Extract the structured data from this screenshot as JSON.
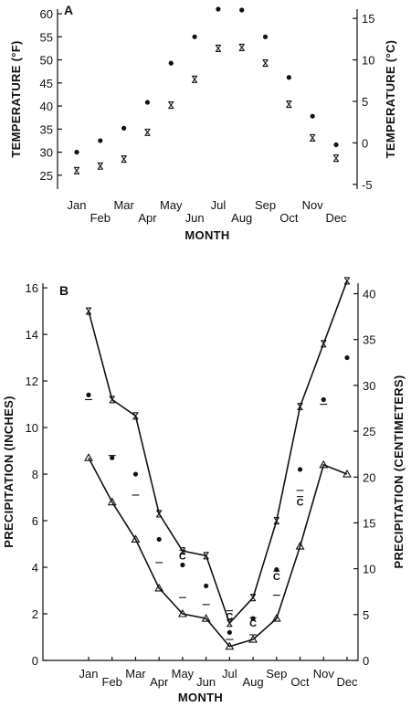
{
  "chart_data": [
    {
      "panel": "A",
      "type": "scatter",
      "xlabel": "MONTH",
      "ylabel": "TEMPERATURE (°F)",
      "ylabel_right": "TEMPERATURE (°C)",
      "categories": [
        "Jan",
        "Feb",
        "Mar",
        "Apr",
        "May",
        "Jun",
        "Jul",
        "Aug",
        "Sep",
        "Oct",
        "Nov",
        "Dec"
      ],
      "ylim": [
        22,
        61
      ],
      "yticks": [
        25,
        30,
        35,
        40,
        45,
        50,
        55,
        60
      ],
      "ylim_right": [
        -5.56,
        16.11
      ],
      "yticks_right": [
        -5,
        0,
        5,
        10,
        15
      ],
      "series": [
        {
          "marker": "dot",
          "values": [
            30,
            32.5,
            35.2,
            40.8,
            49.3,
            55,
            61,
            60.8,
            55,
            46.2,
            37.8,
            31.6
          ]
        },
        {
          "marker": "x",
          "values": [
            26,
            27,
            28.5,
            34.3,
            40.2,
            45.8,
            52.5,
            52.7,
            49.3,
            40.4,
            33.1,
            28.7
          ]
        }
      ]
    },
    {
      "panel": "B",
      "type": "line",
      "xlabel": "MONTH",
      "ylabel": "PRECIPITATION (INCHES)",
      "ylabel_right": "PRECIPITATION (CENTIMETERS)",
      "categories": [
        "Jan",
        "Feb",
        "Mar",
        "Apr",
        "May",
        "Jun",
        "Jul",
        "Aug",
        "Sep",
        "Oct",
        "Nov",
        "Dec"
      ],
      "ylim": [
        0,
        16.2
      ],
      "yticks": [
        0,
        2,
        4,
        6,
        8,
        10,
        12,
        14,
        16
      ],
      "ylim_right": [
        0,
        41.15
      ],
      "yticks_right": [
        0,
        5,
        10,
        15,
        20,
        25,
        30,
        35,
        40
      ],
      "series": [
        {
          "marker": "x",
          "line": true,
          "values": [
            15.0,
            11.2,
            10.5,
            6.3,
            4.7,
            4.5,
            1.6,
            2.7,
            6.0,
            10.9,
            13.6,
            16.3
          ]
        },
        {
          "marker": "triangle",
          "line": true,
          "values": [
            8.7,
            6.8,
            5.2,
            3.1,
            2.0,
            1.8,
            0.6,
            0.9,
            1.8,
            4.9,
            8.4,
            8.0
          ]
        },
        {
          "marker": "dot",
          "values": [
            11.4,
            8.7,
            8.0,
            5.2,
            4.1,
            3.2,
            1.2,
            1.8,
            3.9,
            8.2,
            11.2,
            13.0
          ]
        },
        {
          "marker": "dash",
          "values": [
            11.2,
            8.8,
            7.1,
            4.2,
            2.7,
            2.4,
            0.9,
            1.1,
            2.8,
            7.3,
            11.0,
            null
          ]
        },
        {
          "marker": "C",
          "values": [
            null,
            null,
            null,
            null,
            4.5,
            null,
            1.9,
            1.6,
            3.6,
            6.8,
            null,
            null
          ]
        }
      ]
    }
  ]
}
